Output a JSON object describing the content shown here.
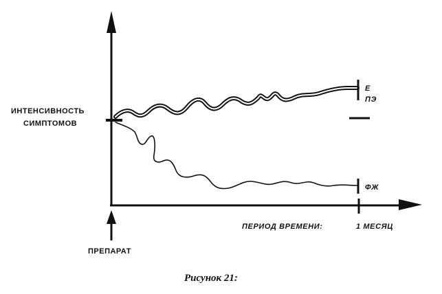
{
  "figure": {
    "y_axis_label_line1": "ИНТЕНСИВНОСТЬ",
    "y_axis_label_line2": "СИМПТОМОВ",
    "x_axis_label": "ПЕРИОД ВРЕМЕНИ:",
    "time_mark_label": "1 МЕСЯЦ",
    "start_marker_label": "ПРЕПАРАТ",
    "upper_curve_label_line1": "Е",
    "upper_curve_label_line2": "ПЭ",
    "lower_curve_label": "ФЖ",
    "caption": "Рисунок 21:"
  }
}
